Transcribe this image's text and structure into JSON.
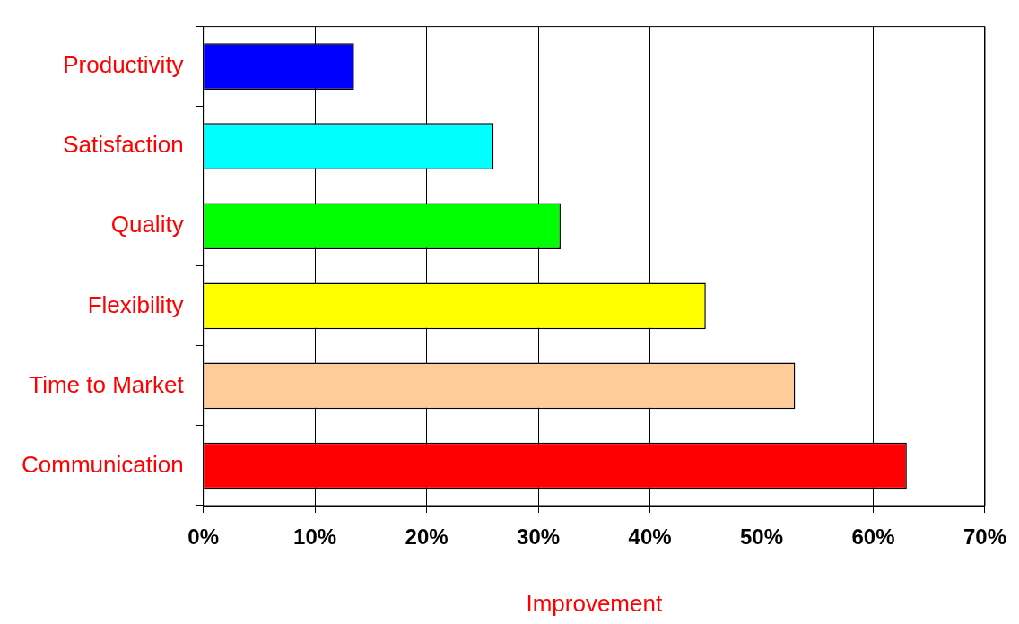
{
  "chart_data": {
    "type": "bar",
    "orientation": "horizontal",
    "xlabel": "Improvement",
    "categories": [
      "Productivity",
      "Satisfaction",
      "Quality",
      "Flexibility",
      "Time to Market",
      "Communication"
    ],
    "values": [
      13.5,
      26,
      32,
      45,
      53,
      63
    ],
    "colors": [
      "#0000ff",
      "#00ffff",
      "#00ff00",
      "#ffff00",
      "#ffcc99",
      "#ff0000"
    ],
    "xlim": [
      0,
      70
    ],
    "xticks": [
      {
        "value": 0,
        "label": "0%"
      },
      {
        "value": 10,
        "label": "10%"
      },
      {
        "value": 20,
        "label": "20%"
      },
      {
        "value": 30,
        "label": "30%"
      },
      {
        "value": 40,
        "label": "40%"
      },
      {
        "value": 50,
        "label": "50%"
      },
      {
        "value": 60,
        "label": "60%"
      },
      {
        "value": 70,
        "label": "70%"
      }
    ],
    "grid": "x"
  }
}
